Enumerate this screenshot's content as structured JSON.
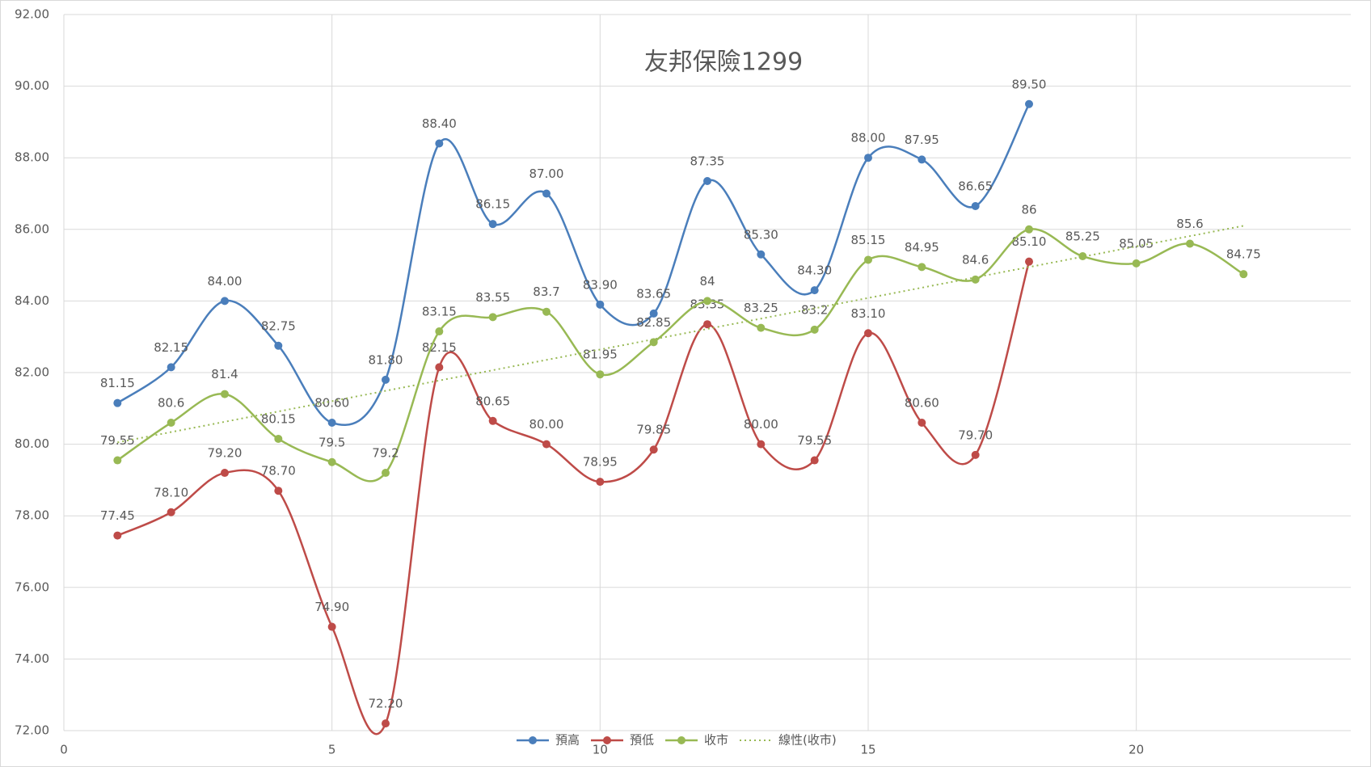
{
  "chart_data": {
    "type": "line",
    "title": "友邦保險1299",
    "xlim": [
      0,
      24
    ],
    "xticks": [
      0,
      5,
      10,
      15,
      20
    ],
    "ylim": [
      72,
      92
    ],
    "yticks": [
      {
        "value": 72,
        "label": "72.00"
      },
      {
        "value": 74,
        "label": "74.00"
      },
      {
        "value": 76,
        "label": "76.00"
      },
      {
        "value": 78,
        "label": "78.00"
      },
      {
        "value": 80,
        "label": "80.00"
      },
      {
        "value": 82,
        "label": "82.00"
      },
      {
        "value": 84,
        "label": "84.00"
      },
      {
        "value": 86,
        "label": "86.00"
      },
      {
        "value": 88,
        "label": "88.00"
      },
      {
        "value": 90,
        "label": "90.00"
      },
      {
        "value": 92,
        "label": "92.00"
      }
    ],
    "grid": true,
    "legend": "bottom",
    "series": [
      {
        "name": "預高",
        "color": "#4a7ebb",
        "smooth": true,
        "markers": true,
        "x": [
          1,
          2,
          3,
          4,
          5,
          6,
          7,
          8,
          9,
          10,
          11,
          12,
          13,
          14,
          15,
          16,
          17,
          18
        ],
        "values": [
          81.15,
          82.15,
          84.0,
          82.75,
          80.6,
          81.8,
          88.4,
          86.15,
          87.0,
          83.9,
          83.65,
          87.35,
          85.3,
          84.3,
          88.0,
          87.95,
          86.65,
          89.5
        ],
        "value_labels": [
          "81.15",
          "82.15",
          "84.00",
          "82.75",
          "80.60",
          "81.80",
          "88.40",
          "86.15",
          "87.00",
          "83.90",
          "83.65",
          "87.35",
          "85.30",
          "84.30",
          "88.00",
          "87.95",
          "86.65",
          "89.50"
        ]
      },
      {
        "name": "預低",
        "color": "#be4b48",
        "smooth": true,
        "markers": true,
        "x": [
          1,
          2,
          3,
          4,
          5,
          6,
          7,
          8,
          9,
          10,
          11,
          12,
          13,
          14,
          15,
          16,
          17,
          18
        ],
        "values": [
          77.45,
          78.1,
          79.2,
          78.7,
          74.9,
          72.2,
          82.15,
          80.65,
          80.0,
          78.95,
          79.85,
          83.35,
          80.0,
          79.55,
          83.1,
          80.6,
          79.7,
          85.1
        ],
        "value_labels": [
          "77.45",
          "78.10",
          "79.20",
          "78.70",
          "74.90",
          "72.20",
          "82.15",
          "80.65",
          "80.00",
          "78.95",
          "79.85",
          "83.35",
          "80.00",
          "79.55",
          "83.10",
          "80.60",
          "79.70",
          "85.10"
        ]
      },
      {
        "name": "收市",
        "color": "#98b954",
        "smooth": true,
        "markers": true,
        "x": [
          1,
          2,
          3,
          4,
          5,
          6,
          7,
          8,
          9,
          10,
          11,
          12,
          13,
          14,
          15,
          16,
          17,
          18,
          19,
          20,
          21,
          22
        ],
        "values": [
          79.55,
          80.6,
          81.4,
          80.15,
          79.5,
          79.2,
          83.15,
          83.55,
          83.7,
          81.95,
          82.85,
          84,
          83.25,
          83.2,
          85.15,
          84.95,
          84.6,
          86,
          85.25,
          85.05,
          85.6,
          84.75
        ]
      },
      {
        "name": "線性(收市)",
        "color": "#98b954",
        "dashed": true,
        "smooth": false,
        "markers": false,
        "x": [
          1,
          22
        ],
        "values": [
          80.05,
          86.1
        ]
      }
    ]
  }
}
